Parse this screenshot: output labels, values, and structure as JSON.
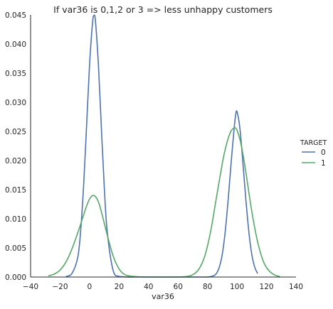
{
  "chart_data": {
    "type": "line",
    "title": "If var36 is 0,1,2 or 3 => less unhappy customers",
    "xlabel": "var36",
    "ylabel": "",
    "xlim": [
      -40,
      140
    ],
    "ylim": [
      0,
      0.045
    ],
    "x_ticks": [
      -40,
      -20,
      0,
      20,
      40,
      60,
      80,
      100,
      120,
      140
    ],
    "x_tick_labels": [
      "−40",
      "−20",
      "0",
      "20",
      "40",
      "60",
      "80",
      "100",
      "120",
      "140"
    ],
    "y_ticks": [
      0,
      0.005,
      0.01,
      0.015,
      0.02,
      0.025,
      0.03,
      0.035,
      0.04,
      0.045
    ],
    "y_tick_labels": [
      "0.000",
      "0.005",
      "0.010",
      "0.015",
      "0.020",
      "0.025",
      "0.030",
      "0.035",
      "0.040",
      "0.045"
    ],
    "grid": false,
    "legend": {
      "title": "TARGET",
      "placement": "right"
    },
    "series": [
      {
        "name": "0",
        "color": "#4c72b0",
        "x": [
          -16,
          -12,
          -8,
          -6,
          -4,
          -2,
          0,
          2,
          3,
          4,
          6,
          8,
          10,
          12,
          16,
          20,
          30,
          40,
          50,
          60,
          70,
          80,
          84,
          86,
          88,
          90,
          92,
          94,
          96,
          98,
          99,
          100,
          102,
          104,
          106,
          108,
          110,
          112,
          114
        ],
        "y": [
          0.0001,
          0.0006,
          0.0034,
          0.0081,
          0.0159,
          0.0261,
          0.0365,
          0.0436,
          0.0449,
          0.0439,
          0.0364,
          0.0256,
          0.0153,
          0.0077,
          0.0011,
          0.0001,
          0.0,
          0.0,
          0.0,
          0.0,
          0.0,
          0.0,
          0.0002,
          0.0006,
          0.0017,
          0.0039,
          0.0078,
          0.0133,
          0.0196,
          0.0254,
          0.0277,
          0.0284,
          0.0254,
          0.0196,
          0.0133,
          0.0078,
          0.0039,
          0.0017,
          0.0006
        ]
      },
      {
        "name": "1",
        "color": "#55a868",
        "x": [
          -28,
          -24,
          -20,
          -16,
          -12,
          -8,
          -4,
          -2,
          0,
          2,
          4,
          6,
          8,
          12,
          16,
          20,
          24,
          30,
          40,
          50,
          60,
          66,
          70,
          74,
          78,
          82,
          86,
          90,
          92,
          94,
          96,
          98,
          99,
          100,
          102,
          104,
          106,
          110,
          114,
          118,
          122,
          126,
          129
        ],
        "y": [
          0.0002,
          0.0005,
          0.0012,
          0.0026,
          0.0048,
          0.0076,
          0.0107,
          0.0122,
          0.0134,
          0.014,
          0.0138,
          0.0129,
          0.0112,
          0.0072,
          0.0036,
          0.0014,
          0.0004,
          0.0001,
          0.0,
          0.0,
          0.0,
          0.0001,
          0.0004,
          0.0013,
          0.0035,
          0.0077,
          0.0136,
          0.0195,
          0.0219,
          0.0238,
          0.0251,
          0.0256,
          0.0256,
          0.0252,
          0.0236,
          0.0211,
          0.018,
          0.0113,
          0.006,
          0.0026,
          0.001,
          0.0003,
          0.0001
        ]
      }
    ]
  }
}
